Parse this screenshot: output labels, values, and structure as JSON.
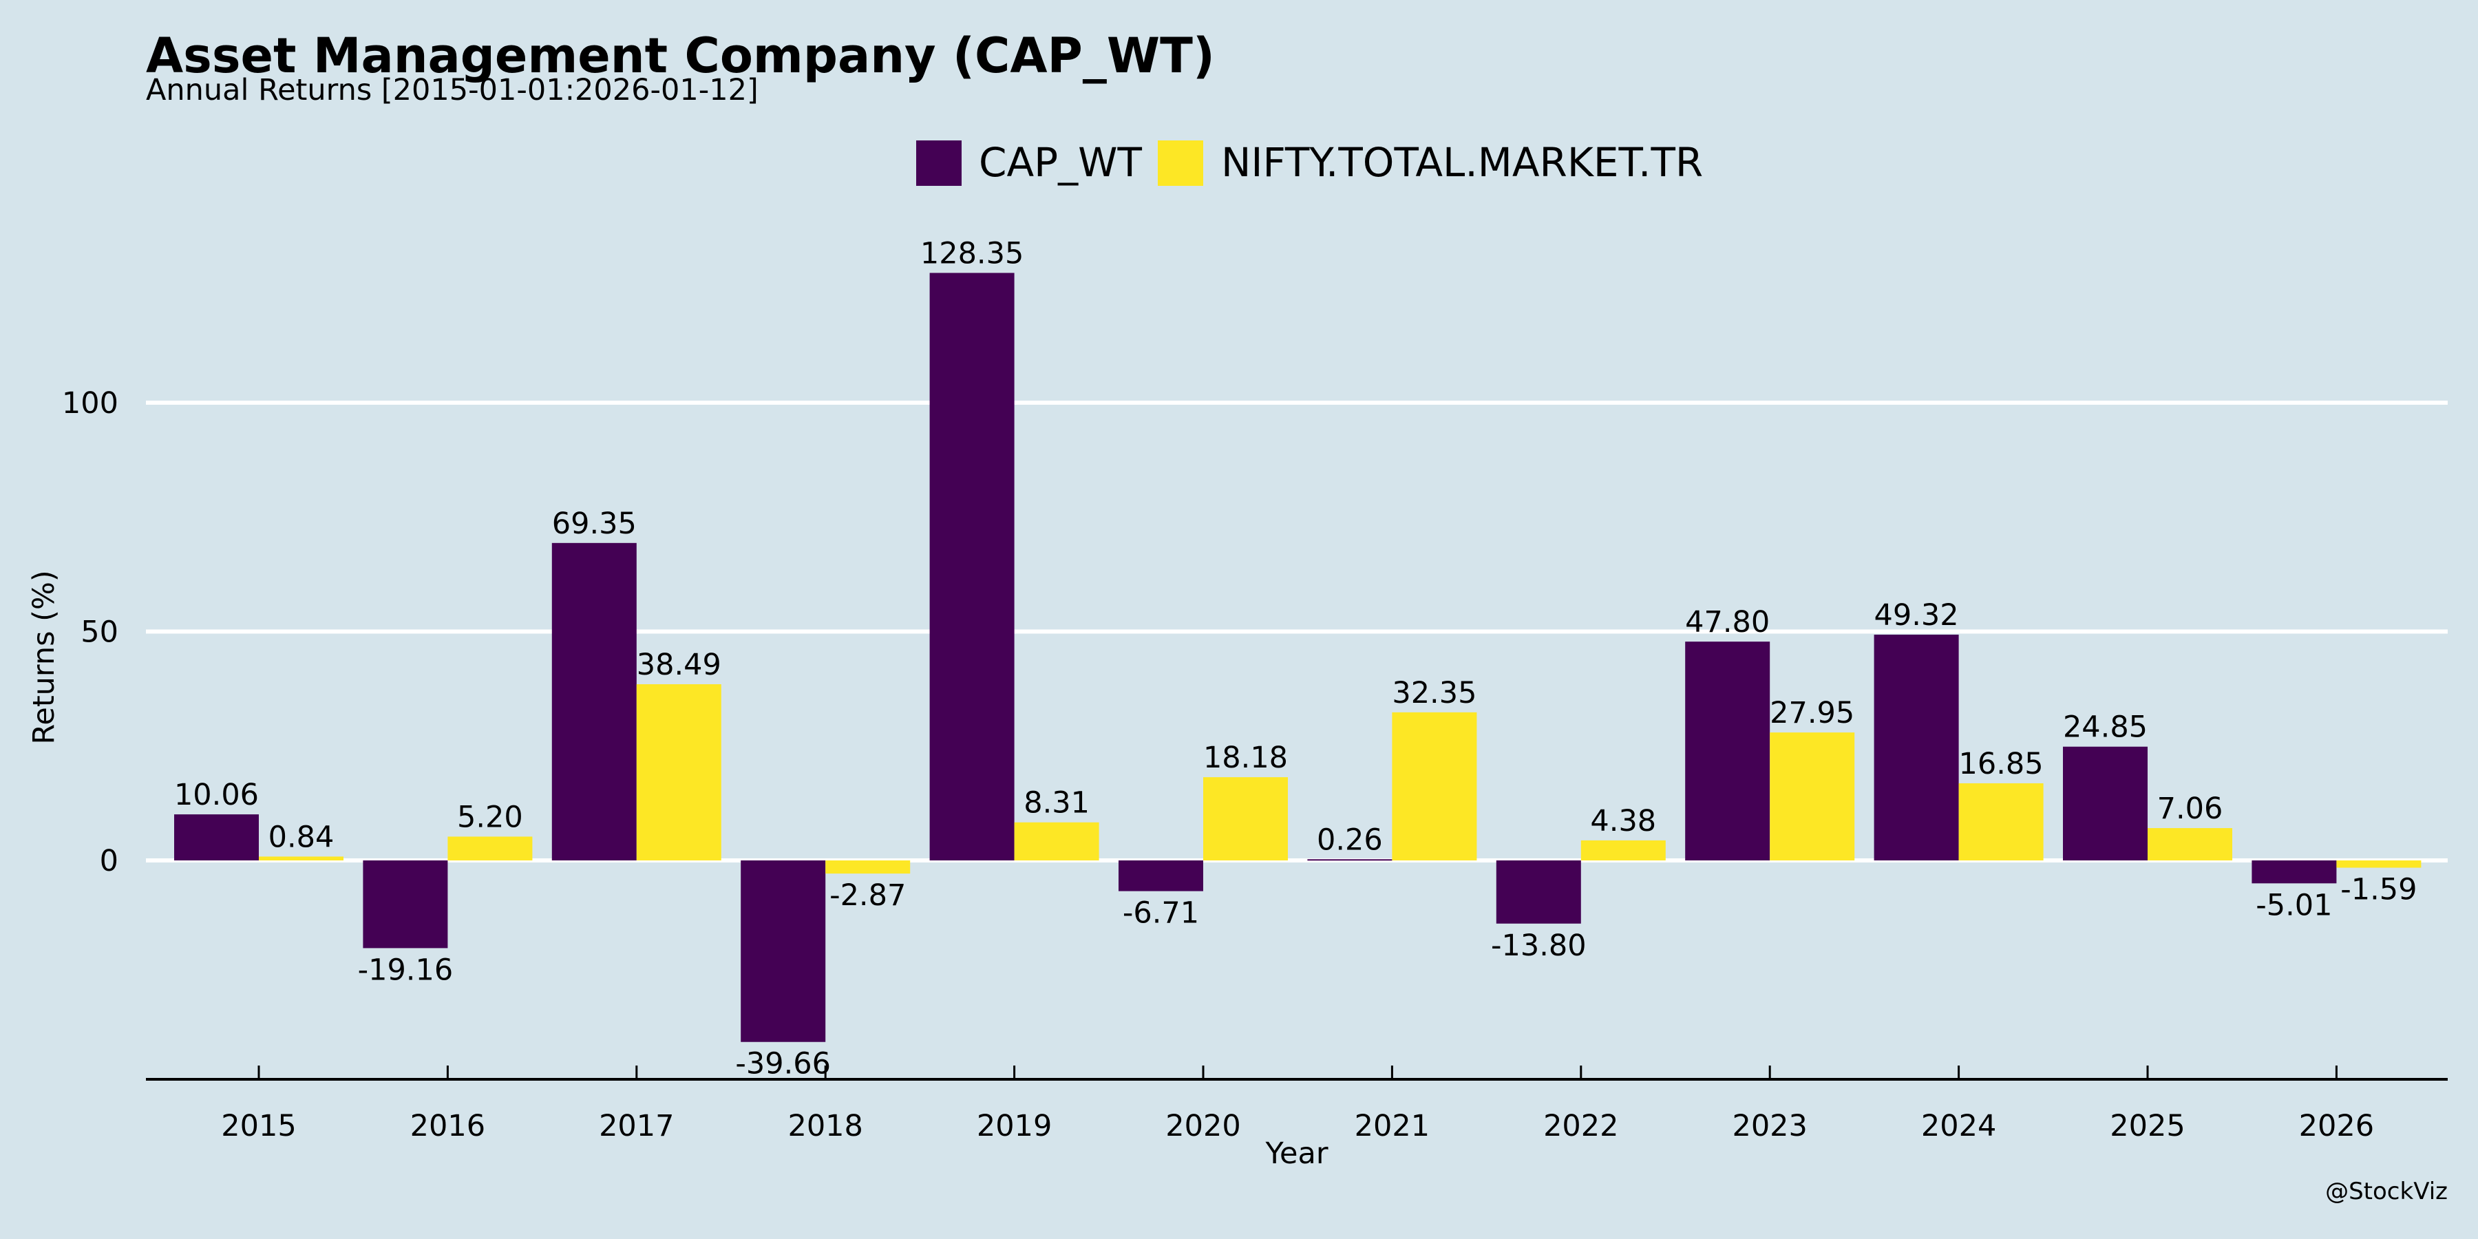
{
  "colors": {
    "background": "#d5e4eb",
    "grid": "#ffffff",
    "axis": "#000000",
    "text": "#000000"
  },
  "chart_data": {
    "type": "bar",
    "title": "Asset Management Company (CAP_WT)",
    "subtitle": "Annual Returns [2015-01-01:2026-01-12]",
    "xlabel": "Year",
    "ylabel": "Returns (%)",
    "categories": [
      "2015",
      "2016",
      "2017",
      "2018",
      "2019",
      "2020",
      "2021",
      "2022",
      "2023",
      "2024",
      "2025",
      "2026"
    ],
    "series": [
      {
        "name": "CAP_WT",
        "color": "#440154",
        "values": [
          10.06,
          -19.16,
          69.35,
          -39.66,
          128.35,
          -6.71,
          0.26,
          -13.8,
          47.8,
          49.32,
          24.85,
          -5.01
        ],
        "labels": [
          "10.06",
          "-19.16",
          "69.35",
          "-39.66",
          "128.35",
          "-6.71",
          "0.26",
          "-13.80",
          "47.80",
          "49.32",
          "24.85",
          "-5.01"
        ]
      },
      {
        "name": "NIFTY.TOTAL.MARKET.TR",
        "color": "#fde725",
        "values": [
          0.84,
          5.2,
          38.49,
          -2.87,
          8.31,
          18.18,
          32.35,
          4.38,
          27.95,
          16.85,
          7.06,
          -1.59
        ],
        "labels": [
          "0.84",
          "5.20",
          "38.49",
          "-2.87",
          "8.31",
          "18.18",
          "32.35",
          "4.38",
          "27.95",
          "16.85",
          "7.06",
          "-1.59"
        ]
      }
    ],
    "yticks": [
      0,
      50,
      100
    ],
    "ytick_labels": [
      "0",
      "50",
      "100"
    ],
    "ylim": [
      -47.8,
      140
    ],
    "grid": true,
    "legend": {
      "placement": "top-center",
      "entries": [
        "CAP_WT",
        "NIFTY.TOTAL.MARKET.TR"
      ]
    },
    "credit": "@StockViz"
  }
}
